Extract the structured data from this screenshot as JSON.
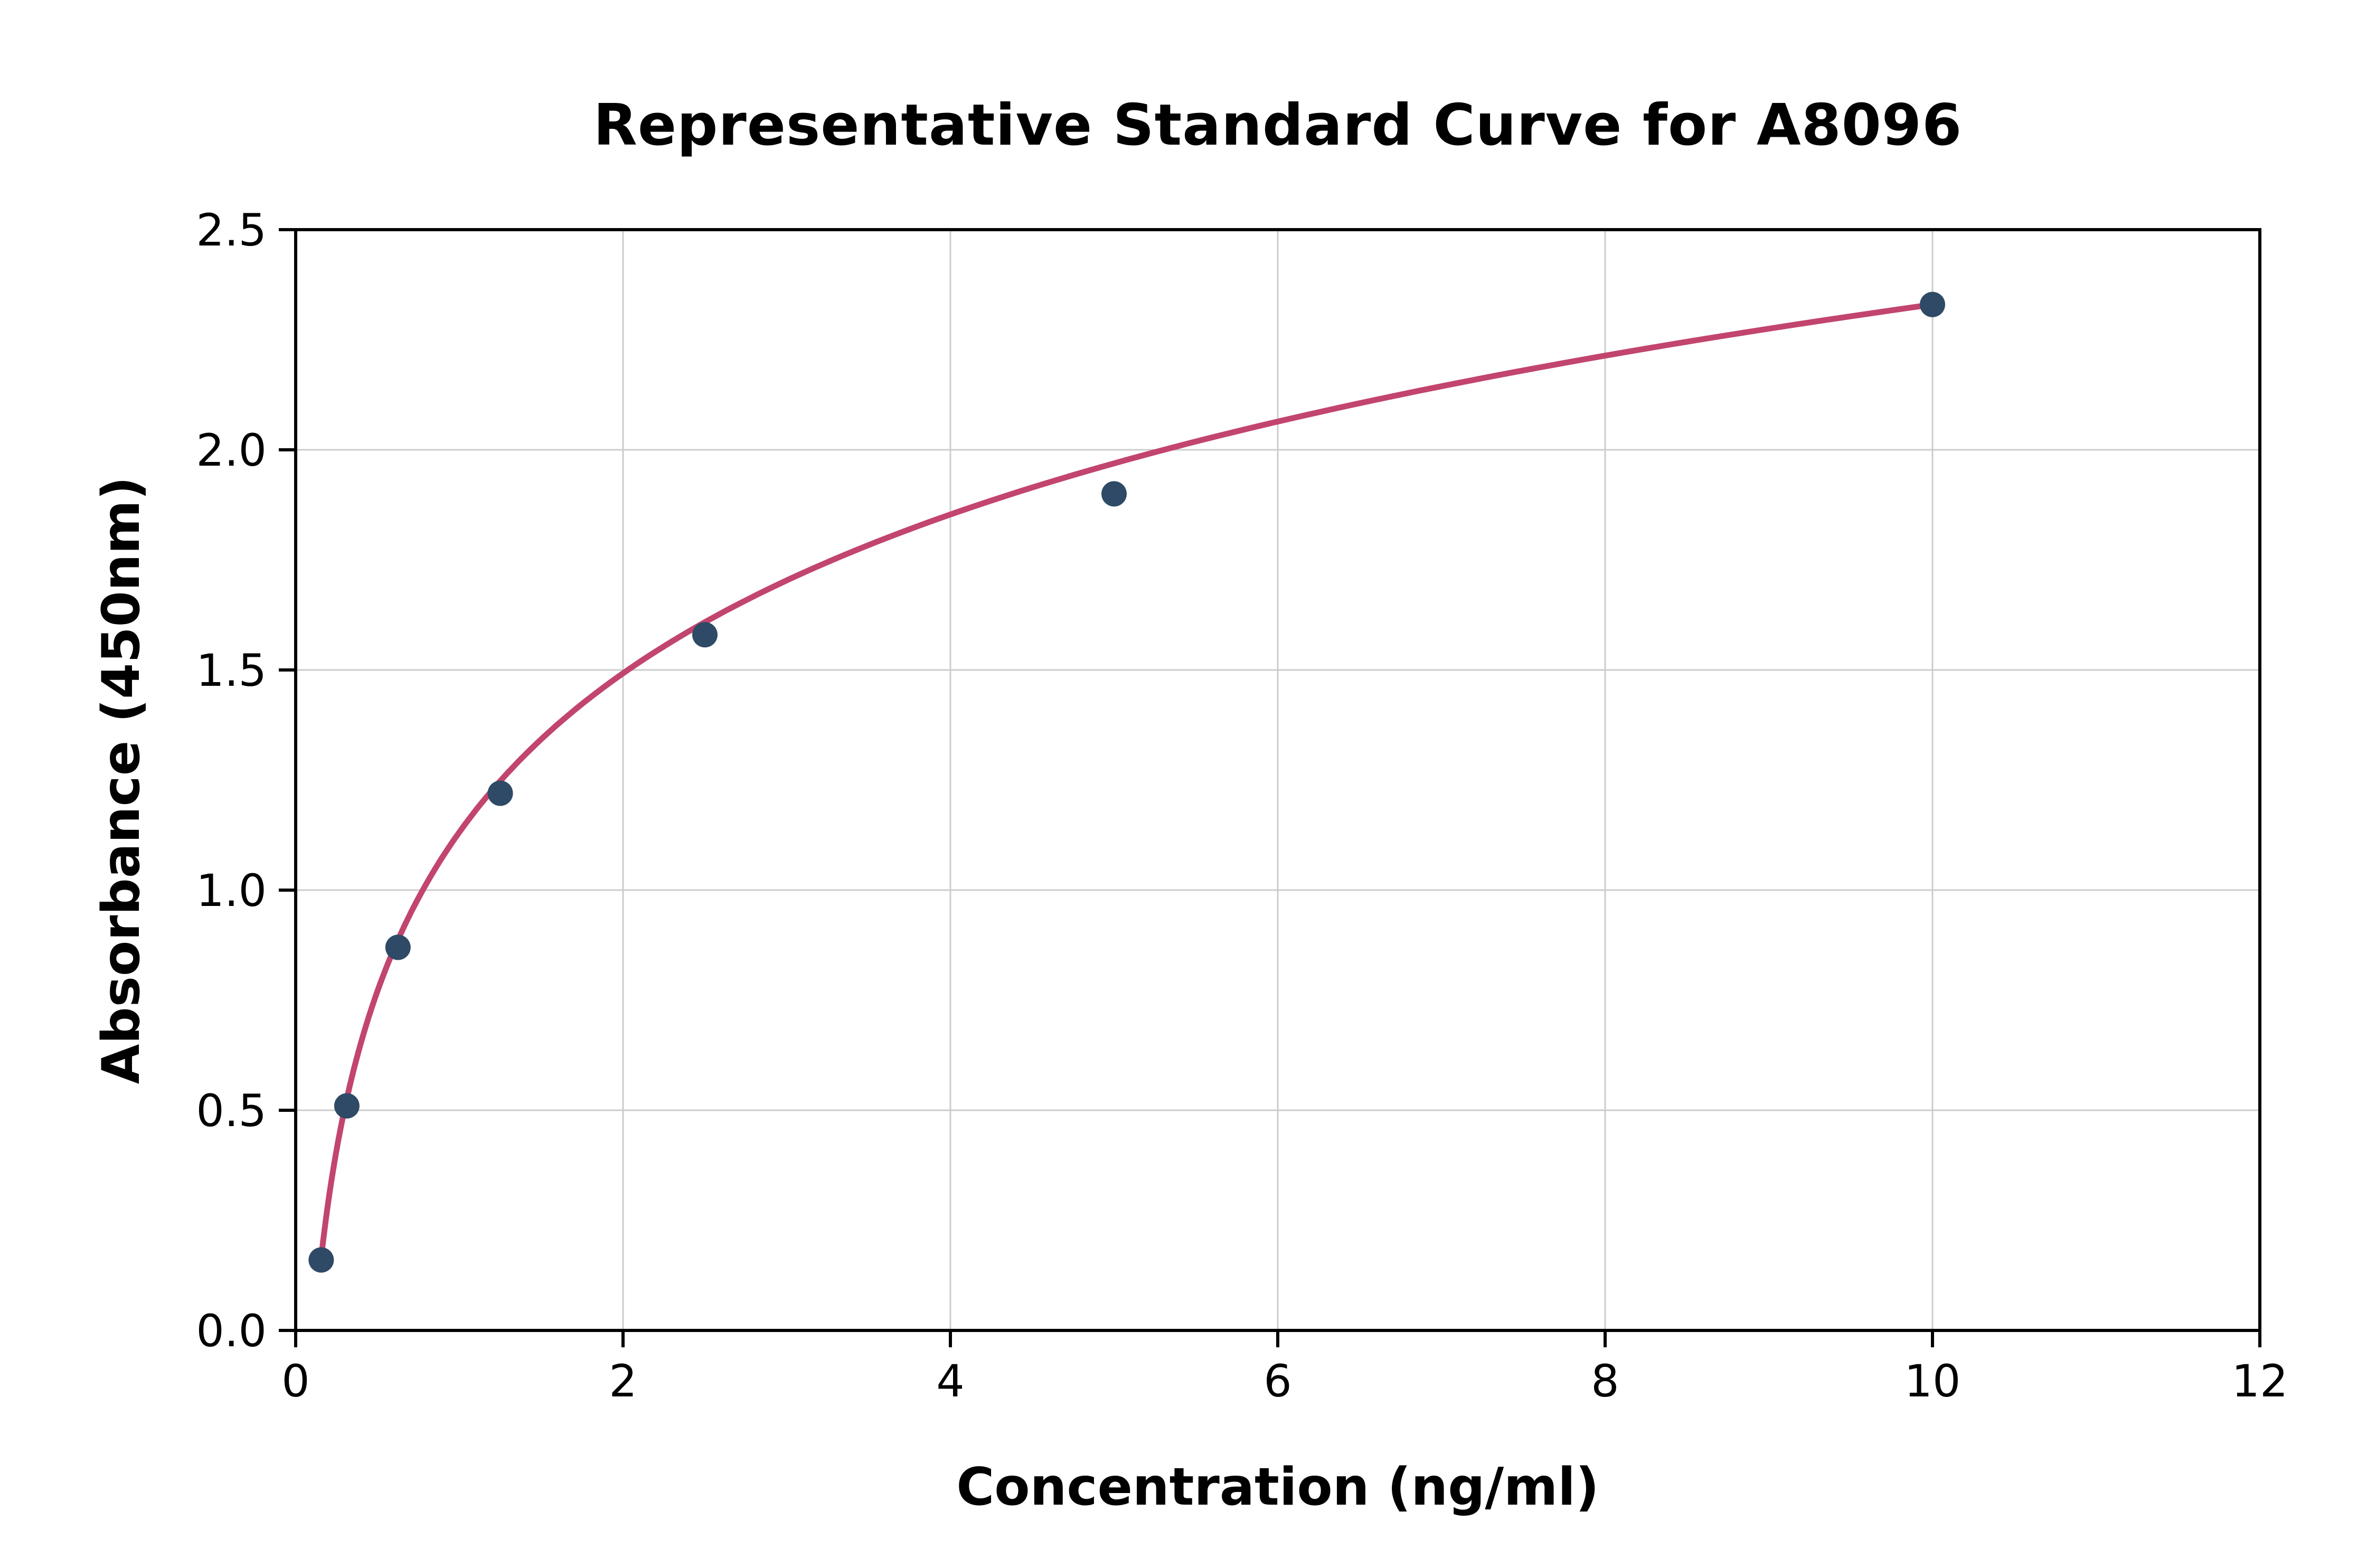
{
  "chart_data": {
    "type": "scatter",
    "title": "Representative Standard Curve for A8096",
    "xlabel": "Concentration (ng/ml)",
    "ylabel": "Absorbance (450nm)",
    "xlim": [
      0,
      12
    ],
    "ylim": [
      0,
      2.5
    ],
    "xticks": [
      0,
      2,
      4,
      6,
      8,
      10,
      12
    ],
    "xtick_labels": [
      "0",
      "2",
      "4",
      "6",
      "8",
      "10",
      "12"
    ],
    "yticks": [
      0.0,
      0.5,
      1.0,
      1.5,
      2.0,
      2.5
    ],
    "ytick_labels": [
      "0.0",
      "0.5",
      "1.0",
      "1.5",
      "2.0",
      "2.5"
    ],
    "grid": true,
    "legend": "none",
    "points": {
      "x": [
        0.156,
        0.3125,
        0.625,
        1.25,
        2.5,
        5,
        10
      ],
      "y": [
        0.16,
        0.51,
        0.87,
        1.22,
        1.58,
        1.9,
        2.33
      ]
    },
    "fit_curve": {
      "type": "log",
      "formula": "y = a*ln(x) + b",
      "a": 0.5204,
      "b": 1.1317,
      "x_start": 0.156,
      "x_end": 10
    },
    "colors": {
      "curve": "#c2456e",
      "points": "#2e4a66",
      "grid": "#cccccc",
      "axis": "#000000",
      "background": "#ffffff"
    }
  }
}
